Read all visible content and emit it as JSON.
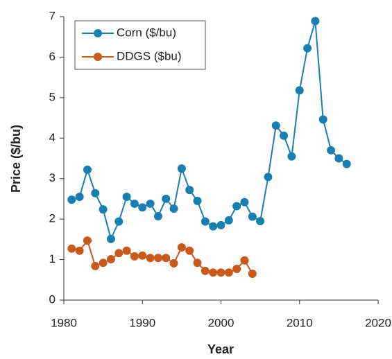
{
  "chart_data": {
    "type": "line",
    "x_label": "Year",
    "y_label": "Price ($/bu)",
    "x": [
      1981,
      1982,
      1983,
      1984,
      1985,
      1986,
      1987,
      1988,
      1989,
      1990,
      1991,
      1992,
      1993,
      1994,
      1995,
      1996,
      1997,
      1998,
      1999,
      2000,
      2001,
      2002,
      2003,
      2004,
      2005,
      2006,
      2007,
      2008,
      2009,
      2010,
      2011,
      2012,
      2013,
      2014,
      2015,
      2016
    ],
    "series": [
      {
        "name": "Corn ($/bu)",
        "color": "#1a7fb0",
        "values": [
          2.48,
          2.55,
          3.22,
          2.64,
          2.24,
          1.51,
          1.94,
          2.55,
          2.38,
          2.29,
          2.38,
          2.07,
          2.5,
          2.26,
          3.25,
          2.72,
          2.45,
          1.94,
          1.82,
          1.85,
          1.97,
          2.32,
          2.42,
          2.06,
          1.95,
          3.04,
          4.31,
          4.06,
          3.55,
          5.18,
          6.22,
          6.89,
          4.46,
          3.7,
          3.5,
          3.36
        ]
      },
      {
        "name": "DDGS ($bu)",
        "color": "#c85a1e",
        "values": [
          1.27,
          1.22,
          1.47,
          0.84,
          0.92,
          1.01,
          1.16,
          1.22,
          1.08,
          1.1,
          1.04,
          1.04,
          1.04,
          0.91,
          1.3,
          1.22,
          0.92,
          0.72,
          0.68,
          0.68,
          0.68,
          0.77,
          0.98,
          0.65,
          null,
          null,
          null,
          null,
          null,
          null,
          null,
          null,
          null,
          null,
          null,
          null
        ]
      }
    ],
    "xlim": [
      1980,
      2020
    ],
    "xticks": [
      1980,
      1990,
      2000,
      2010,
      2020
    ],
    "ylim": [
      0,
      7
    ],
    "yticks": [
      0,
      1,
      2,
      3,
      4,
      5,
      6,
      7
    ],
    "legend": "upper left"
  }
}
